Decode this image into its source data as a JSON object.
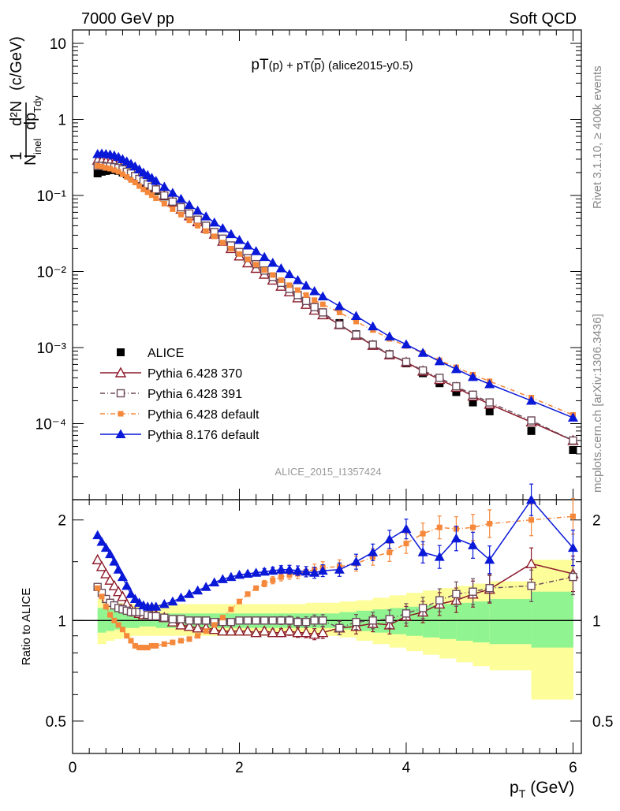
{
  "header": {
    "left": "7000 GeV pp",
    "right": "Soft QCD"
  },
  "side_labels": {
    "rivet": "Rivet 3.1.10, ≥ 400k events",
    "mcplots": "mcplots.cern.ch [arXiv:1306.3436]"
  },
  "watermark": "ALICE_2015_I1357424",
  "colors": {
    "alice": "#000000",
    "p370": "#8b1a2b",
    "p391": "#6b4a5a",
    "p6def": "#f5883a",
    "p8def": "#0a18d8",
    "band_inner": "#90f590",
    "band_outer": "#fdfd9a"
  },
  "chart_data": [
    {
      "type": "scatter",
      "title": "pT(p) + pT(p̄) (alice2015-y0.5)",
      "title_parts": {
        "a": "pT",
        "b": "(p) + pT(",
        "c": "p",
        "d": ") (alice2015-y0.5)"
      },
      "ylabel": {
        "one": "1",
        "nfrac": "d²N",
        "nin": "N",
        "ninsub": "inel",
        "dp": "dp",
        "dpsub": "Tdy",
        "unit": "(c/GeV)"
      },
      "xlim": [
        0,
        6.1
      ],
      "ylim": [
        1e-05,
        15
      ],
      "yscale": "log",
      "ytick_labels": [
        "10",
        "1",
        "10⁻¹",
        "10⁻²",
        "10⁻³",
        "10⁻⁴"
      ],
      "legend": [
        "ALICE",
        "Pythia 6.428 370",
        "Pythia 6.428 391",
        "Pythia 6.428 default",
        "Pythia 8.176 default"
      ],
      "x": [
        0.3,
        0.35,
        0.4,
        0.45,
        0.5,
        0.55,
        0.6,
        0.65,
        0.7,
        0.75,
        0.8,
        0.85,
        0.9,
        0.95,
        1.0,
        1.1,
        1.2,
        1.3,
        1.4,
        1.5,
        1.6,
        1.7,
        1.8,
        1.9,
        2.0,
        2.1,
        2.2,
        2.3,
        2.4,
        2.5,
        2.6,
        2.7,
        2.8,
        2.9,
        3.0,
        3.2,
        3.4,
        3.6,
        3.8,
        4.0,
        4.2,
        4.4,
        4.6,
        4.8,
        5.0,
        5.5,
        6.0
      ],
      "series": [
        {
          "name": "ALICE",
          "values": [
            0.195,
            0.205,
            0.21,
            0.215,
            0.215,
            0.21,
            0.2,
            0.19,
            0.18,
            0.17,
            0.155,
            0.145,
            0.135,
            0.125,
            0.115,
            0.097,
            0.082,
            0.069,
            0.058,
            0.048,
            0.04,
            0.033,
            0.027,
            0.022,
            0.018,
            0.015,
            0.0125,
            0.0103,
            0.0085,
            0.0071,
            0.0059,
            0.0049,
            0.0041,
            0.0034,
            0.0029,
            0.0021,
            0.0015,
            0.0011,
            0.00082,
            0.00062,
            0.00046,
            0.00034,
            0.00026,
            0.00019,
            0.000145,
            8e-05,
            4.5e-05
          ]
        },
        {
          "name": "Pythia 6.428 370",
          "values": [
            0.29,
            0.285,
            0.28,
            0.275,
            0.27,
            0.26,
            0.245,
            0.225,
            0.21,
            0.195,
            0.175,
            0.16,
            0.147,
            0.135,
            0.123,
            0.1,
            0.082,
            0.066,
            0.054,
            0.045,
            0.037,
            0.031,
            0.025,
            0.02,
            0.016,
            0.013,
            0.011,
            0.0092,
            0.0077,
            0.0064,
            0.0054,
            0.0045,
            0.0037,
            0.0031,
            0.0027,
            0.002,
            0.00145,
            0.00107,
            0.0008,
            0.00064,
            0.00049,
            0.00038,
            0.0003,
            0.00023,
            0.00018,
            0.000105,
            6e-05
          ]
        },
        {
          "name": "Pythia 6.428 391",
          "values": [
            0.245,
            0.245,
            0.24,
            0.24,
            0.235,
            0.23,
            0.22,
            0.205,
            0.195,
            0.18,
            0.165,
            0.153,
            0.14,
            0.13,
            0.12,
            0.1,
            0.083,
            0.07,
            0.058,
            0.048,
            0.04,
            0.033,
            0.027,
            0.022,
            0.018,
            0.015,
            0.0125,
            0.0103,
            0.0085,
            0.0071,
            0.0059,
            0.0049,
            0.0041,
            0.0034,
            0.0029,
            0.002,
            0.00148,
            0.00109,
            0.00081,
            0.00065,
            0.0005,
            0.0004,
            0.00031,
            0.00024,
            0.00019,
            0.00011,
            6e-05
          ]
        },
        {
          "name": "Pythia 6.428 default",
          "values": [
            0.245,
            0.24,
            0.23,
            0.225,
            0.215,
            0.205,
            0.19,
            0.175,
            0.16,
            0.148,
            0.133,
            0.12,
            0.11,
            0.101,
            0.092,
            0.078,
            0.066,
            0.056,
            0.047,
            0.04,
            0.034,
            0.029,
            0.024,
            0.02,
            0.017,
            0.0145,
            0.0123,
            0.0105,
            0.009,
            0.0077,
            0.0066,
            0.0057,
            0.0049,
            0.0042,
            0.0037,
            0.0029,
            0.0022,
            0.0017,
            0.0013,
            0.00105,
            0.00085,
            0.00068,
            0.00055,
            0.00044,
            0.00036,
            0.00022,
            0.00013
          ]
        },
        {
          "name": "Pythia 8.176 default",
          "values": [
            0.35,
            0.355,
            0.35,
            0.345,
            0.335,
            0.32,
            0.3,
            0.28,
            0.26,
            0.24,
            0.22,
            0.2,
            0.185,
            0.17,
            0.155,
            0.13,
            0.108,
            0.09,
            0.075,
            0.063,
            0.053,
            0.044,
            0.037,
            0.031,
            0.026,
            0.022,
            0.0185,
            0.0155,
            0.013,
            0.011,
            0.0092,
            0.0077,
            0.0065,
            0.0055,
            0.0047,
            0.0035,
            0.0026,
            0.0019,
            0.0014,
            0.0011,
            0.00085,
            0.00066,
            0.00052,
            0.00041,
            0.00033,
            0.0002,
            0.00012
          ]
        }
      ]
    },
    {
      "type": "scatter",
      "ylabel": "Ratio to ALICE",
      "xlabel": "p",
      "xlabel_sub": "T",
      "xlabel_unit": "(GeV)",
      "xlim": [
        0,
        6.1
      ],
      "ylim": [
        0.4,
        2.3
      ],
      "yscale": "log",
      "xtick_labels": [
        "0",
        "2",
        "4",
        "6"
      ],
      "ytick_labels": [
        "0.5",
        "1",
        "2"
      ],
      "band_x": [
        0.3,
        0.4,
        0.5,
        0.6,
        0.7,
        0.8,
        0.9,
        1.0,
        1.2,
        1.4,
        1.6,
        1.8,
        2.0,
        2.2,
        2.4,
        2.6,
        2.8,
        3.0,
        3.2,
        3.4,
        3.6,
        3.8,
        4.0,
        4.2,
        4.4,
        4.6,
        4.8,
        5.0,
        5.5,
        6.0
      ],
      "band_inner": [
        [
          0.92,
          1.09
        ],
        [
          0.93,
          1.08
        ],
        [
          0.94,
          1.07
        ],
        [
          0.95,
          1.06
        ],
        [
          0.95,
          1.06
        ],
        [
          0.96,
          1.05
        ],
        [
          0.96,
          1.05
        ],
        [
          0.95,
          1.05
        ],
        [
          0.95,
          1.05
        ],
        [
          0.95,
          1.05
        ],
        [
          0.95,
          1.05
        ],
        [
          0.95,
          1.05
        ],
        [
          0.95,
          1.05
        ],
        [
          0.95,
          1.05
        ],
        [
          0.95,
          1.05
        ],
        [
          0.95,
          1.05
        ],
        [
          0.95,
          1.05
        ],
        [
          0.95,
          1.05
        ],
        [
          0.94,
          1.06
        ],
        [
          0.93,
          1.07
        ],
        [
          0.92,
          1.08
        ],
        [
          0.91,
          1.09
        ],
        [
          0.9,
          1.1
        ],
        [
          0.89,
          1.11
        ],
        [
          0.88,
          1.12
        ],
        [
          0.87,
          1.13
        ],
        [
          0.86,
          1.14
        ],
        [
          0.85,
          1.16
        ],
        [
          0.83,
          1.22
        ]
      ],
      "band_outer": [
        [
          0.85,
          1.16
        ],
        [
          0.87,
          1.14
        ],
        [
          0.88,
          1.13
        ],
        [
          0.89,
          1.12
        ],
        [
          0.9,
          1.12
        ],
        [
          0.9,
          1.12
        ],
        [
          0.9,
          1.12
        ],
        [
          0.9,
          1.12
        ],
        [
          0.9,
          1.12
        ],
        [
          0.9,
          1.12
        ],
        [
          0.9,
          1.12
        ],
        [
          0.9,
          1.12
        ],
        [
          0.9,
          1.12
        ],
        [
          0.9,
          1.12
        ],
        [
          0.9,
          1.12
        ],
        [
          0.9,
          1.12
        ],
        [
          0.9,
          1.13
        ],
        [
          0.9,
          1.13
        ],
        [
          0.89,
          1.14
        ],
        [
          0.87,
          1.15
        ],
        [
          0.85,
          1.17
        ],
        [
          0.83,
          1.19
        ],
        [
          0.81,
          1.21
        ],
        [
          0.79,
          1.23
        ],
        [
          0.77,
          1.25
        ],
        [
          0.75,
          1.27
        ],
        [
          0.73,
          1.29
        ],
        [
          0.71,
          1.31
        ],
        [
          0.58,
          1.52
        ]
      ],
      "x": [
        0.3,
        0.35,
        0.4,
        0.45,
        0.5,
        0.55,
        0.6,
        0.65,
        0.7,
        0.75,
        0.8,
        0.85,
        0.9,
        0.95,
        1.0,
        1.1,
        1.2,
        1.3,
        1.4,
        1.5,
        1.6,
        1.7,
        1.8,
        1.9,
        2.0,
        2.1,
        2.2,
        2.3,
        2.4,
        2.5,
        2.6,
        2.7,
        2.8,
        2.9,
        3.0,
        3.2,
        3.4,
        3.6,
        3.8,
        4.0,
        4.2,
        4.4,
        4.6,
        4.8,
        5.0,
        5.5,
        6.0
      ],
      "series": [
        {
          "name": "Pythia 6.428 370",
          "values": [
            1.52,
            1.45,
            1.38,
            1.32,
            1.27,
            1.22,
            1.18,
            1.12,
            1.08,
            1.06,
            1.05,
            1.04,
            1.04,
            1.04,
            1.04,
            1.02,
            0.99,
            0.97,
            0.96,
            0.95,
            0.95,
            0.94,
            0.93,
            0.93,
            0.93,
            0.93,
            0.92,
            0.93,
            0.92,
            0.92,
            0.93,
            0.92,
            0.92,
            0.91,
            0.92,
            0.95,
            0.96,
            0.98,
            0.97,
            1.03,
            1.06,
            1.12,
            1.15,
            1.2,
            1.24,
            1.48,
            1.38
          ]
        },
        {
          "name": "Pythia 6.428 391",
          "values": [
            1.26,
            1.21,
            1.16,
            1.13,
            1.11,
            1.09,
            1.08,
            1.07,
            1.06,
            1.06,
            1.06,
            1.06,
            1.04,
            1.03,
            1.03,
            1.02,
            1.01,
            1.01,
            1.0,
            1.0,
            1.0,
            0.99,
            0.99,
            0.99,
            1.0,
            1.0,
            1.0,
            1.0,
            1.0,
            1.0,
            1.0,
            0.99,
            0.99,
            1.0,
            1.0,
            0.95,
            0.99,
            1.0,
            1.01,
            1.05,
            1.09,
            1.15,
            1.2,
            1.22,
            1.25,
            1.27,
            1.35
          ]
        },
        {
          "name": "Pythia 6.428 default",
          "values": [
            1.25,
            1.18,
            1.1,
            1.04,
            1.0,
            0.97,
            0.94,
            0.9,
            0.87,
            0.84,
            0.83,
            0.83,
            0.83,
            0.84,
            0.84,
            0.85,
            0.86,
            0.87,
            0.88,
            0.9,
            0.93,
            0.97,
            1.02,
            1.08,
            1.14,
            1.2,
            1.25,
            1.29,
            1.32,
            1.35,
            1.37,
            1.38,
            1.4,
            1.42,
            1.44,
            1.45,
            1.48,
            1.55,
            1.6,
            1.7,
            1.82,
            1.9,
            1.88,
            1.9,
            1.95,
            2.0,
            2.05
          ]
        },
        {
          "name": "Pythia 8.176 default",
          "values": [
            1.8,
            1.72,
            1.65,
            1.58,
            1.5,
            1.42,
            1.35,
            1.27,
            1.2,
            1.16,
            1.13,
            1.11,
            1.1,
            1.1,
            1.1,
            1.12,
            1.14,
            1.17,
            1.2,
            1.23,
            1.26,
            1.3,
            1.33,
            1.35,
            1.37,
            1.38,
            1.39,
            1.4,
            1.41,
            1.42,
            1.42,
            1.41,
            1.4,
            1.39,
            1.41,
            1.42,
            1.5,
            1.6,
            1.75,
            1.88,
            1.6,
            1.55,
            1.76,
            1.68,
            1.52,
            2.5,
            1.65
          ]
        }
      ]
    }
  ]
}
